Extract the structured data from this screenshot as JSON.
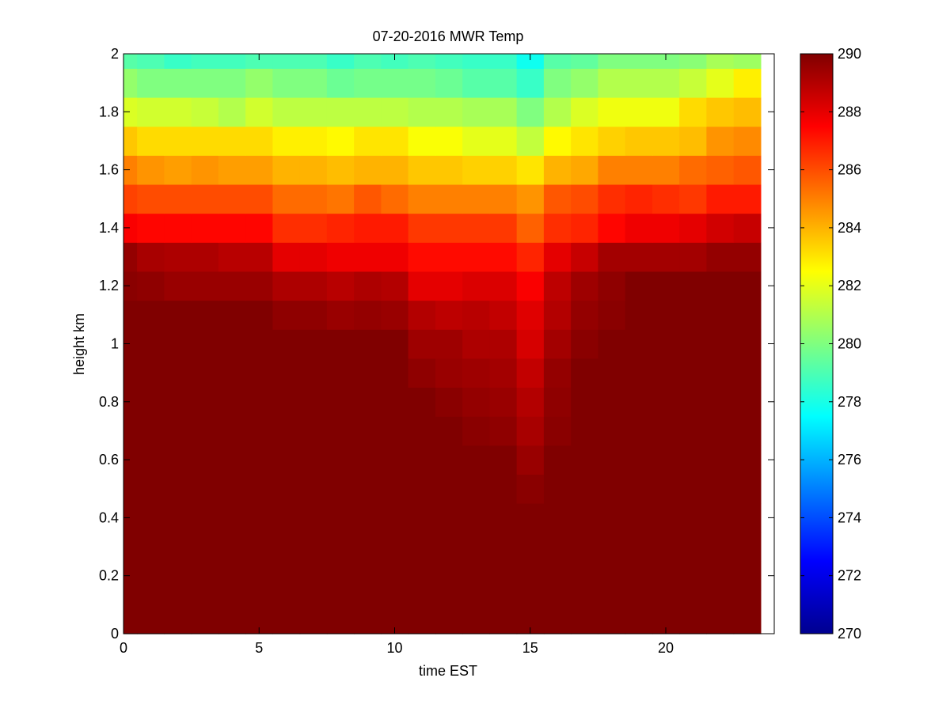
{
  "chart_data": {
    "type": "heatmap",
    "title": "07-20-2016 MWR Temp",
    "xlabel": "time EST",
    "ylabel": "height km",
    "xlim": [
      0,
      24
    ],
    "ylim": [
      0,
      2
    ],
    "xticks": [
      0,
      5,
      10,
      15,
      20
    ],
    "yticks": [
      0,
      0.2,
      0.4,
      0.6,
      0.8,
      1,
      1.2,
      1.4,
      1.6,
      1.8,
      2
    ],
    "colormap": "jet",
    "clim": [
      270,
      290
    ],
    "colorbar_ticks": [
      270,
      272,
      274,
      276,
      278,
      280,
      282,
      284,
      286,
      288,
      290
    ],
    "colorbar_side": "right",
    "x_edges": [
      0,
      0.5,
      1.5,
      2.5,
      3.5,
      4.5,
      5.5,
      6.5,
      7.5,
      8.5,
      9.5,
      10.5,
      11.5,
      12.5,
      13.5,
      14.5,
      15.5,
      16.5,
      17.5,
      18.5,
      19.5,
      20.5,
      21.5,
      22.5,
      23.5
    ],
    "y_edges": [
      0,
      0.05,
      0.15,
      0.25,
      0.35,
      0.45,
      0.55,
      0.65,
      0.75,
      0.85,
      0.95,
      1.05,
      1.15,
      1.25,
      1.35,
      1.45,
      1.55,
      1.65,
      1.75,
      1.85,
      1.95,
      2.0
    ],
    "values_note_rows_bottom_to_top": "",
    "values": [
      [
        290,
        290,
        290,
        290,
        290,
        290,
        290,
        290,
        290,
        290,
        290,
        290,
        290,
        290,
        290,
        290,
        290,
        290,
        290,
        290,
        290,
        290,
        290,
        290
      ],
      [
        290,
        290,
        290,
        290,
        290,
        290,
        290,
        290,
        290,
        290,
        290,
        290,
        290,
        290,
        290,
        290,
        290,
        290,
        290,
        290,
        290,
        290,
        290,
        290
      ],
      [
        290,
        290,
        290,
        290,
        290,
        290,
        290,
        290,
        290,
        290,
        290,
        290,
        290,
        290,
        290,
        290,
        290,
        290,
        290,
        290,
        290,
        290,
        290,
        290
      ],
      [
        290,
        290,
        290,
        290,
        290,
        290,
        290,
        290,
        290,
        290,
        290,
        290,
        290,
        290,
        290,
        290,
        290,
        290,
        290,
        290,
        290,
        290,
        290,
        290
      ],
      [
        290,
        290,
        290,
        290,
        290,
        290,
        290,
        290,
        290,
        290,
        290,
        290,
        290,
        290,
        290,
        290,
        290,
        290,
        290,
        290,
        290,
        290,
        290,
        290
      ],
      [
        290,
        290,
        290,
        290,
        290,
        290,
        290,
        290,
        290,
        290,
        290,
        290,
        290,
        290,
        290,
        289.8,
        290,
        290,
        290,
        290,
        290,
        290,
        290,
        290
      ],
      [
        290,
        290,
        290,
        290,
        290,
        290,
        290,
        290,
        290,
        290,
        290,
        290,
        290,
        290,
        290,
        289.5,
        290,
        290,
        290,
        290,
        290,
        290,
        290,
        290
      ],
      [
        290,
        290,
        290,
        290,
        290,
        290,
        290,
        290,
        290,
        290,
        290,
        290,
        290,
        289.8,
        289.7,
        289.2,
        289.8,
        290,
        290,
        290,
        290,
        290,
        290,
        290
      ],
      [
        290,
        290,
        290,
        290,
        290,
        290,
        290,
        290,
        290,
        290,
        290,
        290,
        289.8,
        289.6,
        289.5,
        289.0,
        289.7,
        290,
        290,
        290,
        290,
        290,
        290,
        290
      ],
      [
        290,
        290,
        290,
        290,
        290,
        290,
        290,
        290,
        290,
        290,
        290,
        289.7,
        289.5,
        289.4,
        289.3,
        288.7,
        289.6,
        290,
        290,
        290,
        290,
        290,
        290,
        290
      ],
      [
        290,
        290,
        290,
        290,
        290,
        290,
        290,
        290,
        290,
        290,
        290,
        289.4,
        289.4,
        289.1,
        289.1,
        288.3,
        289.3,
        289.8,
        290,
        290,
        290,
        290,
        290,
        290
      ],
      [
        290,
        290,
        290,
        290,
        290,
        290,
        289.7,
        289.7,
        289.5,
        289.6,
        289.5,
        289.0,
        288.8,
        288.9,
        288.7,
        288.1,
        289.0,
        289.6,
        289.8,
        290,
        290,
        290,
        290,
        290
      ],
      [
        289.8,
        289.7,
        289.5,
        289.5,
        289.5,
        289.5,
        289.1,
        289.1,
        288.9,
        289.1,
        289.0,
        288.0,
        288.0,
        288.2,
        288.2,
        287.6,
        288.8,
        289.4,
        289.7,
        290,
        290,
        290,
        290,
        290
      ],
      [
        289.6,
        289.2,
        289.1,
        289.1,
        288.9,
        288.9,
        288.0,
        288.0,
        287.8,
        287.8,
        287.8,
        287.3,
        287.3,
        287.3,
        287.3,
        286.8,
        288.0,
        288.6,
        289.3,
        289.3,
        289.3,
        289.3,
        289.6,
        289.6
      ],
      [
        287.6,
        287.4,
        287.4,
        287.4,
        287.4,
        287.4,
        286.6,
        286.6,
        286.8,
        287.0,
        287.0,
        286.4,
        286.4,
        286.4,
        286.4,
        285.6,
        286.6,
        286.8,
        287.4,
        287.8,
        287.8,
        288.0,
        288.4,
        288.6
      ],
      [
        286.2,
        286.0,
        286.0,
        286.0,
        286.0,
        286.0,
        285.4,
        285.4,
        285.2,
        285.8,
        285.4,
        285.0,
        285.0,
        285.0,
        285.0,
        284.6,
        285.8,
        286.0,
        286.6,
        286.8,
        286.6,
        286.4,
        287.0,
        287.0
      ],
      [
        285.0,
        284.6,
        284.4,
        284.6,
        284.4,
        284.4,
        284.0,
        284.0,
        283.8,
        284.0,
        284.0,
        283.6,
        283.6,
        283.4,
        283.4,
        283.0,
        284.0,
        284.2,
        285.0,
        285.0,
        285.0,
        285.4,
        285.6,
        285.8
      ],
      [
        283.6,
        283.2,
        283.2,
        283.2,
        283.2,
        283.2,
        282.8,
        282.8,
        282.6,
        283.0,
        283.0,
        282.4,
        282.4,
        282.0,
        282.0,
        281.3,
        282.6,
        283.0,
        283.4,
        283.6,
        283.6,
        283.8,
        284.6,
        284.8
      ],
      [
        281.8,
        281.6,
        281.6,
        281.4,
        281.0,
        281.6,
        281.2,
        281.2,
        281.2,
        281.2,
        281.2,
        281.0,
        281.0,
        280.8,
        280.8,
        280.0,
        281.0,
        281.8,
        282.2,
        282.2,
        282.2,
        283.2,
        283.6,
        283.8
      ],
      [
        280.4,
        280.0,
        280.0,
        280.0,
        280.0,
        280.4,
        280.0,
        280.0,
        279.6,
        279.8,
        279.8,
        279.8,
        279.6,
        279.2,
        279.2,
        278.6,
        280.0,
        280.4,
        281.0,
        281.0,
        281.0,
        281.4,
        282.0,
        282.8
      ],
      [
        279.2,
        279.0,
        278.6,
        278.8,
        278.8,
        279.0,
        279.0,
        279.0,
        278.6,
        279.0,
        278.8,
        279.0,
        278.8,
        278.6,
        278.6,
        277.8,
        279.2,
        279.4,
        280.0,
        280.0,
        280.0,
        280.2,
        280.8,
        280.6
      ]
    ]
  }
}
